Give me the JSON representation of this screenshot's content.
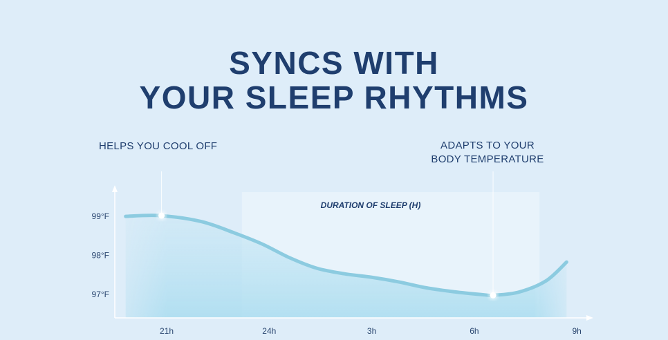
{
  "header": {
    "title_line1": "SYNCS WITH",
    "title_line2": "YOUR SLEEP RHYTHMS"
  },
  "annotations": {
    "left": "HELPS YOU COOL OFF",
    "right_line1": "ADAPTS TO YOUR",
    "right_line2": "BODY TEMPERATURE"
  },
  "colors": {
    "title": "#1f3e6e",
    "background": "#deedf9",
    "curve": "#8ccbe0",
    "fill": "#b5e0f0"
  },
  "chart_data": {
    "type": "area",
    "band_label": "DURATION OF  SLEEP (H)",
    "x_unit": "hour of day (continuous past midnight)",
    "x_ticks": [
      {
        "value": 21,
        "label": "21h"
      },
      {
        "value": 24,
        "label": "24h"
      },
      {
        "value": 27,
        "label": "3h"
      },
      {
        "value": 30,
        "label": "6h"
      },
      {
        "value": 33,
        "label": "9h"
      }
    ],
    "y_ticks": [
      {
        "value": 99,
        "label": "99°F"
      },
      {
        "value": 98,
        "label": "98°F"
      },
      {
        "value": 97,
        "label": "97°F"
      }
    ],
    "band": [
      23.2,
      33.0
    ],
    "series": [
      {
        "x": [
          19.8,
          20.8,
          22.0,
          23.0,
          23.8,
          24.6,
          25.4,
          26.2,
          27.0,
          27.8,
          28.6,
          29.5,
          30.3,
          30.55,
          31.3,
          32.1,
          32.7
        ],
        "y": [
          98.98,
          99.0,
          98.85,
          98.55,
          98.27,
          97.92,
          97.65,
          97.51,
          97.42,
          97.3,
          97.15,
          97.04,
          96.97,
          96.96,
          97.04,
          97.33,
          97.81
        ]
      }
    ],
    "markers": [
      {
        "x": 20.85,
        "y": 99.0
      },
      {
        "x": 30.55,
        "y": 96.96
      }
    ],
    "grid": false
  }
}
